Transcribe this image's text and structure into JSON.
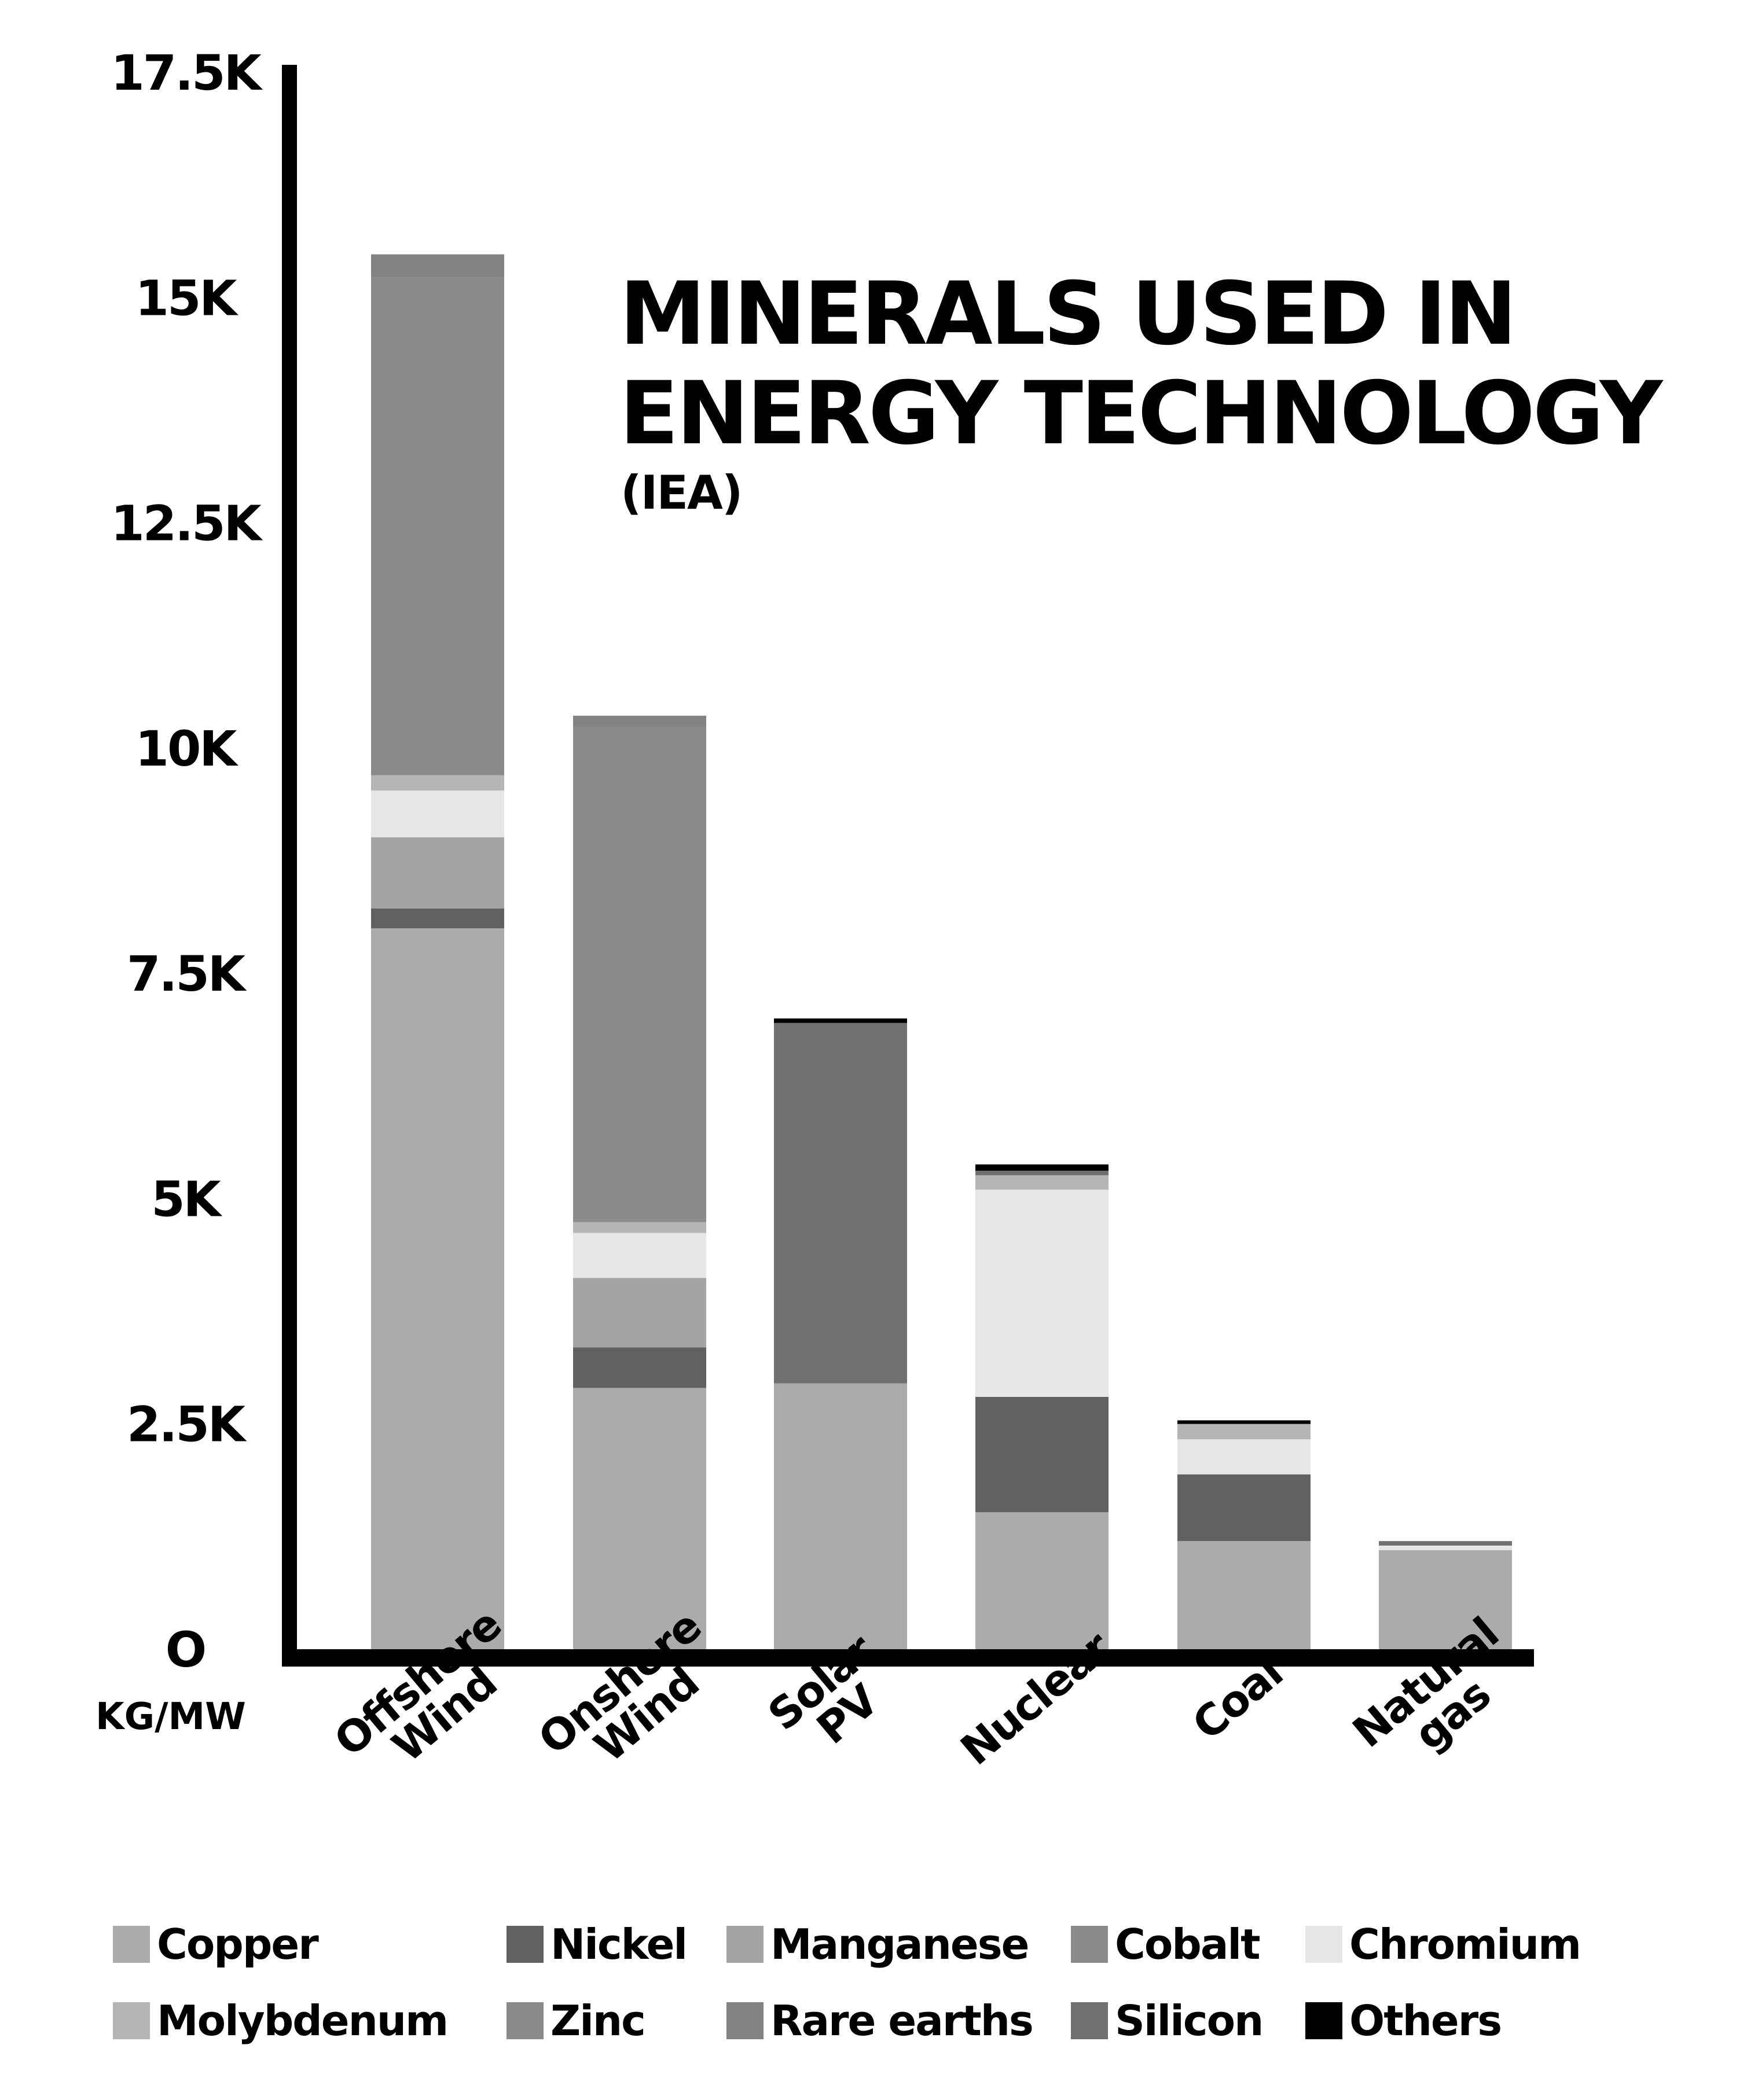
{
  "title_line1": "MINERALS USED IN",
  "title_line2": "ENERGY TECHNOLOGY",
  "subtitle": "(IEA)",
  "unit_label": "KG/MW",
  "chart_data": {
    "type": "bar",
    "stacked": true,
    "categories": [
      "Offshore Wind",
      "Onshore Wind",
      "Solar PV",
      "Nuclear",
      "Coal",
      "Natural gas"
    ],
    "y_ticks": [
      0,
      2500,
      5000,
      7500,
      10000,
      12500,
      15000,
      17500
    ],
    "y_tick_labels": [
      "O",
      "2.5K",
      "5K",
      "7.5K",
      "10K",
      "12.5K",
      "15K",
      "17.5K"
    ],
    "ylim": [
      0,
      17500
    ],
    "grid": false,
    "legend_position": "bottom",
    "series": [
      {
        "name": "Copper",
        "color": "#ababab",
        "values": [
          8000,
          2900,
          2950,
          1520,
          1200,
          1100
        ]
      },
      {
        "name": "Nickel",
        "color": "#616161",
        "values": [
          220,
          450,
          0,
          1280,
          740,
          0
        ]
      },
      {
        "name": "Manganese",
        "color": "#a4a4a4",
        "values": [
          790,
          770,
          0,
          0,
          0,
          0
        ]
      },
      {
        "name": "Cobalt",
        "color": "#8b8b8b",
        "values": [
          0,
          0,
          0,
          0,
          0,
          0
        ]
      },
      {
        "name": "Chromium",
        "color": "#e6e6e6",
        "values": [
          520,
          500,
          0,
          2300,
          390,
          50
        ]
      },
      {
        "name": "Molybdenum",
        "color": "#b5b5b5",
        "values": [
          170,
          120,
          0,
          160,
          170,
          0
        ]
      },
      {
        "name": "Zinc",
        "color": "#8a8a8a",
        "values": [
          5530,
          5500,
          0,
          0,
          0,
          0
        ]
      },
      {
        "name": "Rare earths",
        "color": "#828282",
        "values": [
          250,
          120,
          0,
          0,
          0,
          0
        ]
      },
      {
        "name": "Silicon",
        "color": "#707070",
        "values": [
          0,
          0,
          4000,
          50,
          0,
          50
        ]
      },
      {
        "name": "Others",
        "color": "#000000",
        "values": [
          0,
          0,
          50,
          70,
          40,
          0
        ]
      }
    ]
  }
}
